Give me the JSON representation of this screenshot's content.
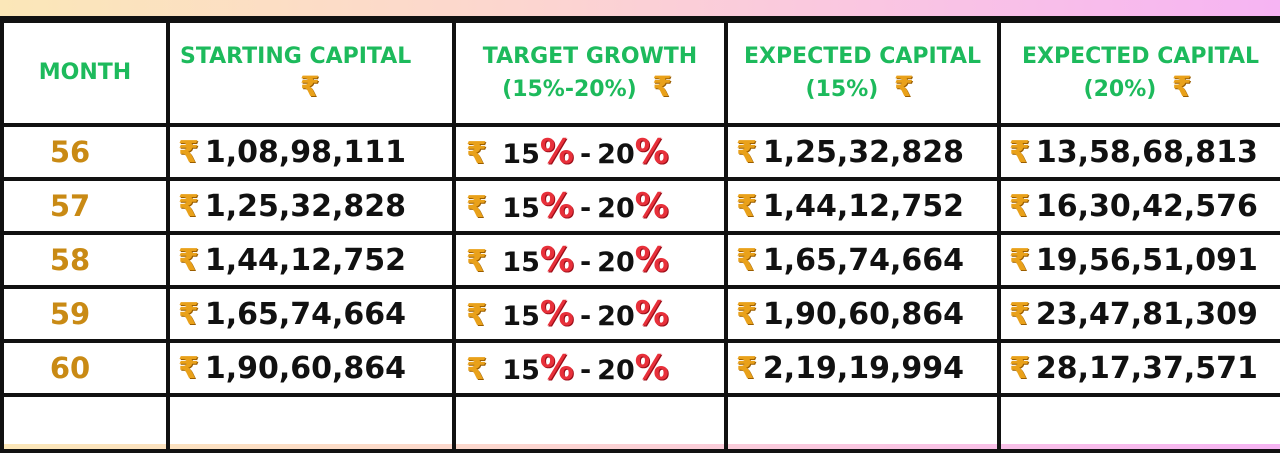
{
  "columns": {
    "month": "MONTH",
    "starting": "STARTING CAPITAL",
    "target_line1": "TARGET GROWTH",
    "target_line2": "(15%-20%)",
    "exp15_line1": "EXPECTED CAPITAL",
    "exp15_line2": "(15%)",
    "exp20_line1": "EXPECTED CAPITAL",
    "exp20_line2": "(20%)"
  },
  "currency_symbol": "₹",
  "growth": {
    "low": "15",
    "high": "20",
    "percent": "%",
    "dash": "-"
  },
  "rows": [
    {
      "month": "56",
      "starting": "1,08,98,111",
      "exp15": "1,25,32,828",
      "exp20": "13,58,68,813"
    },
    {
      "month": "57",
      "starting": "1,25,32,828",
      "exp15": "1,44,12,752",
      "exp20": "16,30,42,576"
    },
    {
      "month": "58",
      "starting": "1,44,12,752",
      "exp15": "1,65,74,664",
      "exp20": "19,56,51,091"
    },
    {
      "month": "59",
      "starting": "1,65,74,664",
      "exp15": "1,90,60,864",
      "exp20": "23,47,81,309"
    },
    {
      "month": "60",
      "starting": "1,90,60,864",
      "exp15": "2,19,19,994",
      "exp20": "28,17,37,571"
    }
  ],
  "colors": {
    "header_green": "#1dba5c",
    "month_gold": "#c98a14",
    "rupee_gold": "#e9a11a",
    "percent_red": "#e8303a"
  }
}
